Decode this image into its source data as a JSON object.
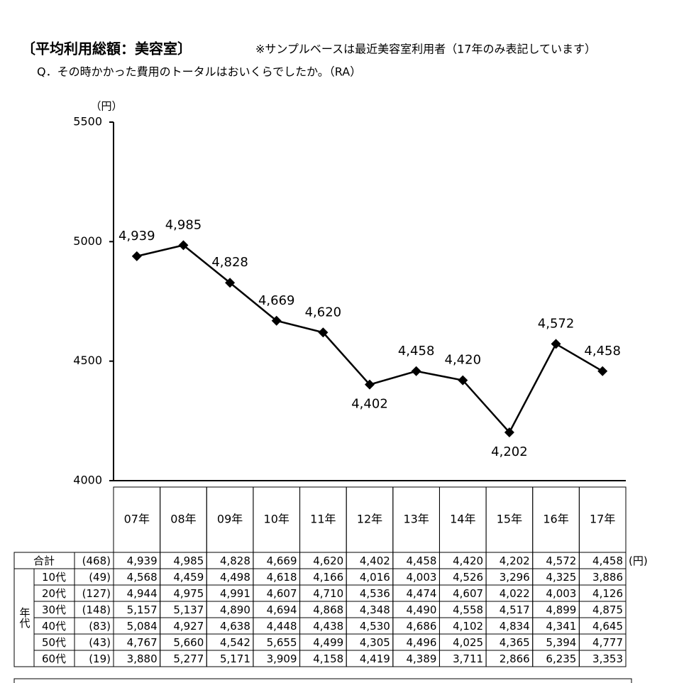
{
  "chart_data": {
    "type": "line",
    "title": "〔平均利用総額：美容室〕",
    "note": "※サンプルベースは最近美容室利用者（17年のみ表記しています）",
    "question": "Q．その時かかった費用のトータルはおいくらでしたか。（RA）",
    "y_unit": "（円）",
    "categories": [
      "07年",
      "08年",
      "09年",
      "10年",
      "11年",
      "12年",
      "13年",
      "14年",
      "15年",
      "16年",
      "17年"
    ],
    "values": [
      4939,
      4985,
      4828,
      4669,
      4620,
      4402,
      4458,
      4420,
      4202,
      4572,
      4458
    ],
    "value_labels": [
      "4,939",
      "4,985",
      "4,828",
      "4,669",
      "4,620",
      "4,402",
      "4,458",
      "4,420",
      "4,202",
      "4,572",
      "4,458"
    ],
    "color": "#000000",
    "ylim": [
      4000,
      5500
    ],
    "yticks": [
      4000,
      4500,
      5000,
      5500
    ],
    "grid": false
  },
  "table": {
    "group_label": "年代",
    "unit": "(円)",
    "rows": [
      {
        "label": "合計",
        "n": "(468)",
        "cells": [
          "4,939",
          "4,985",
          "4,828",
          "4,669",
          "4,620",
          "4,402",
          "4,458",
          "4,420",
          "4,202",
          "4,572",
          "4,458"
        ]
      },
      {
        "label": "10代",
        "n": "(49)",
        "cells": [
          "4,568",
          "4,459",
          "4,498",
          "4,618",
          "4,166",
          "4,016",
          "4,003",
          "4,526",
          "3,296",
          "4,325",
          "3,886"
        ]
      },
      {
        "label": "20代",
        "n": "(127)",
        "cells": [
          "4,944",
          "4,975",
          "4,991",
          "4,607",
          "4,710",
          "4,536",
          "4,474",
          "4,607",
          "4,022",
          "4,003",
          "4,126"
        ]
      },
      {
        "label": "30代",
        "n": "(148)",
        "cells": [
          "5,157",
          "5,137",
          "4,890",
          "4,694",
          "4,868",
          "4,348",
          "4,490",
          "4,558",
          "4,517",
          "4,899",
          "4,875"
        ]
      },
      {
        "label": "40代",
        "n": "(83)",
        "cells": [
          "5,084",
          "4,927",
          "4,638",
          "4,448",
          "4,438",
          "4,530",
          "4,686",
          "4,102",
          "4,834",
          "4,341",
          "4,645"
        ]
      },
      {
        "label": "50代",
        "n": "(43)",
        "cells": [
          "4,767",
          "5,660",
          "4,542",
          "5,655",
          "4,499",
          "4,305",
          "4,496",
          "4,025",
          "4,365",
          "5,394",
          "4,777"
        ]
      },
      {
        "label": "60代",
        "n": "(19)",
        "cells": [
          "3,880",
          "5,277",
          "5,171",
          "3,909",
          "4,158",
          "4,419",
          "4,389",
          "3,711",
          "2,866",
          "6,235",
          "3,353"
        ]
      }
    ]
  }
}
